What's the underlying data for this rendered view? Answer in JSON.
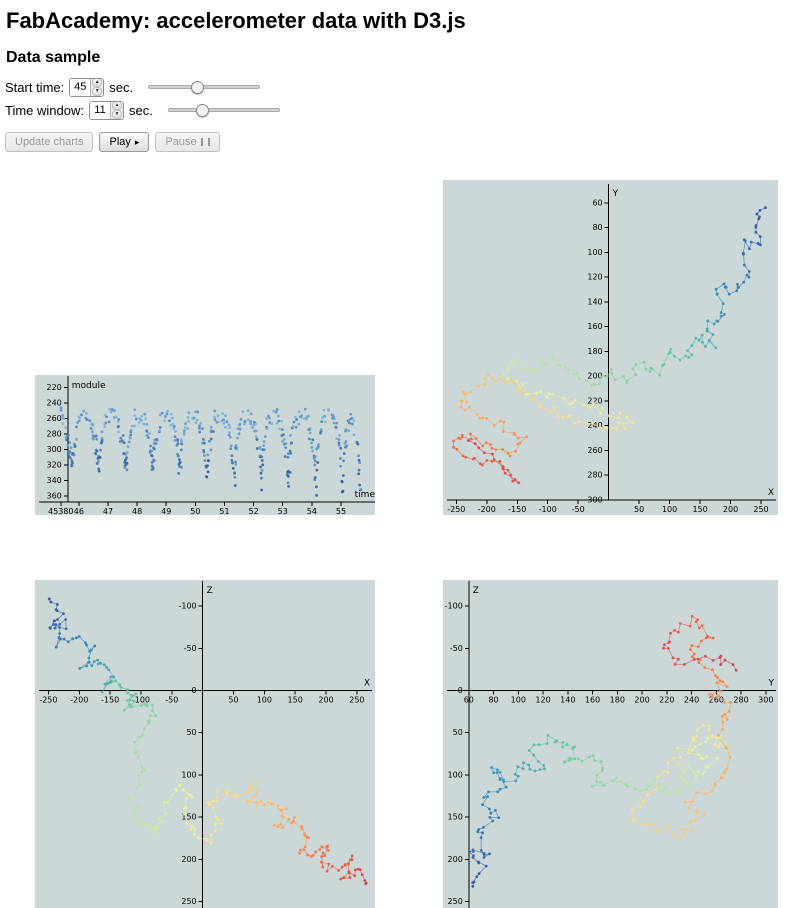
{
  "page": {
    "title": "FabAcademy: accelerometer data with D3.js",
    "subtitle": "Data sample"
  },
  "controls": {
    "start_time": {
      "label": "Start time:",
      "value": "45",
      "unit": "sec.",
      "slider_percent": 43
    },
    "time_window": {
      "label": "Time window:",
      "value": "11",
      "unit": "sec.",
      "slider_percent": 28
    },
    "buttons": {
      "update": "Update charts",
      "play": "Play",
      "play_icon": "▸",
      "pause": "Pause"
    }
  },
  "colors": {
    "chart_bg": "#cbd8d7",
    "module_light": "#7fb3dc",
    "module_dark": "#2a5f9e",
    "spectral": [
      "#3c53a4",
      "#3288bd",
      "#66c2a5",
      "#abdda4",
      "#e6f598",
      "#fee08b",
      "#fdae61",
      "#f46d43",
      "#d53e4f"
    ]
  },
  "chart_data": [
    {
      "id": "module",
      "type": "scatter",
      "x_label": "time",
      "y_label": "module",
      "x_domain": [
        44.7,
        56.1
      ],
      "y_domain": [
        210,
        368
      ],
      "x_axis_at": 368,
      "y_axis_at": 45.62,
      "x_ticks": [
        {
          "v": 45.38,
          "label": "45380"
        },
        46,
        47,
        48,
        49,
        50,
        51,
        52,
        53,
        54,
        55
      ],
      "y_ticks": [
        220,
        240,
        260,
        280,
        300,
        320,
        340,
        360
      ],
      "points": [
        [
          45.37,
          255
        ],
        [
          45.5,
          268
        ],
        [
          45.62,
          288
        ],
        [
          45.7,
          305
        ],
        [
          45.75,
          318
        ],
        [
          45.81,
          300
        ],
        [
          45.91,
          278
        ],
        [
          46.03,
          258
        ],
        [
          46.3,
          255
        ],
        [
          46.43,
          268
        ],
        [
          46.55,
          288
        ],
        [
          46.63,
          305
        ],
        [
          46.68,
          322
        ],
        [
          46.74,
          300
        ],
        [
          46.84,
          278
        ],
        [
          46.96,
          258
        ],
        [
          47.23,
          255
        ],
        [
          47.36,
          268
        ],
        [
          47.48,
          288
        ],
        [
          47.56,
          305
        ],
        [
          47.61,
          326
        ],
        [
          47.67,
          300
        ],
        [
          47.77,
          278
        ],
        [
          47.89,
          258
        ],
        [
          48.16,
          255
        ],
        [
          48.29,
          268
        ],
        [
          48.41,
          288
        ],
        [
          48.49,
          305
        ],
        [
          48.54,
          330
        ],
        [
          48.6,
          300
        ],
        [
          48.7,
          278
        ],
        [
          48.82,
          258
        ],
        [
          49.09,
          255
        ],
        [
          49.22,
          268
        ],
        [
          49.34,
          288
        ],
        [
          49.42,
          305
        ],
        [
          49.47,
          334
        ],
        [
          49.53,
          300
        ],
        [
          49.63,
          278
        ],
        [
          49.75,
          258
        ],
        [
          50.02,
          255
        ],
        [
          50.15,
          268
        ],
        [
          50.27,
          288
        ],
        [
          50.35,
          305
        ],
        [
          50.4,
          338
        ],
        [
          50.46,
          300
        ],
        [
          50.56,
          278
        ],
        [
          50.68,
          258
        ],
        [
          50.95,
          255
        ],
        [
          51.08,
          268
        ],
        [
          51.2,
          288
        ],
        [
          51.28,
          305
        ],
        [
          51.33,
          342
        ],
        [
          51.39,
          300
        ],
        [
          51.49,
          278
        ],
        [
          51.61,
          258
        ],
        [
          51.88,
          255
        ],
        [
          52.01,
          268
        ],
        [
          52.13,
          288
        ],
        [
          52.21,
          305
        ],
        [
          52.26,
          346
        ],
        [
          52.32,
          300
        ],
        [
          52.42,
          278
        ],
        [
          52.54,
          258
        ],
        [
          52.81,
          255
        ],
        [
          52.94,
          268
        ],
        [
          53.06,
          288
        ],
        [
          53.14,
          305
        ],
        [
          53.19,
          350
        ],
        [
          53.25,
          300
        ],
        [
          53.35,
          278
        ],
        [
          53.47,
          258
        ],
        [
          53.74,
          255
        ],
        [
          53.87,
          268
        ],
        [
          53.99,
          288
        ],
        [
          54.07,
          305
        ],
        [
          54.12,
          354
        ],
        [
          54.18,
          300
        ],
        [
          54.28,
          278
        ],
        [
          54.4,
          258
        ],
        [
          54.67,
          255
        ],
        [
          54.8,
          268
        ],
        [
          54.92,
          288
        ],
        [
          55.0,
          305
        ],
        [
          55.05,
          358
        ],
        [
          55.11,
          300
        ],
        [
          55.21,
          278
        ],
        [
          55.33,
          258
        ],
        [
          55.45,
          268
        ],
        [
          55.6,
          310
        ],
        [
          55.68,
          352
        ]
      ]
    },
    {
      "id": "xy",
      "type": "trajectory",
      "x_label": "X",
      "y_label": "Y",
      "x_domain": [
        -262,
        268
      ],
      "y_domain": [
        48,
        300
      ],
      "x_axis_at": 300,
      "y_axis_at": 0,
      "x_ticks": [
        -250,
        -200,
        -150,
        -100,
        -50,
        50,
        100,
        150,
        200,
        250
      ],
      "y_ticks": [
        60,
        80,
        100,
        120,
        140,
        160,
        180,
        200,
        220,
        240,
        260,
        280,
        300
      ],
      "points": [
        [
          255,
          62
        ],
        [
          238,
          78
        ],
        [
          248,
          96
        ],
        [
          220,
          92
        ],
        [
          230,
          118
        ],
        [
          205,
          132
        ],
        [
          178,
          128
        ],
        [
          190,
          150
        ],
        [
          162,
          158
        ],
        [
          172,
          176
        ],
        [
          145,
          168
        ],
        [
          128,
          188
        ],
        [
          100,
          180
        ],
        [
          82,
          198
        ],
        [
          55,
          190
        ],
        [
          30,
          205
        ],
        [
          2,
          198
        ],
        [
          -30,
          208
        ],
        [
          -65,
          196
        ],
        [
          -95,
          186
        ],
        [
          -125,
          198
        ],
        [
          -155,
          186
        ],
        [
          -170,
          202
        ],
        [
          -135,
          212
        ],
        [
          -95,
          215
        ],
        [
          -50,
          222
        ],
        [
          -5,
          228
        ],
        [
          35,
          236
        ],
        [
          5,
          244
        ],
        [
          -45,
          238
        ],
        [
          -90,
          228
        ],
        [
          -130,
          218
        ],
        [
          -165,
          206
        ],
        [
          -195,
          200
        ],
        [
          -225,
          212
        ],
        [
          -245,
          222
        ],
        [
          -215,
          232
        ],
        [
          -175,
          240
        ],
        [
          -140,
          252
        ],
        [
          -165,
          262
        ],
        [
          -205,
          256
        ],
        [
          -235,
          246
        ],
        [
          -252,
          258
        ],
        [
          -220,
          266
        ],
        [
          -180,
          272
        ],
        [
          -150,
          286
        ],
        [
          -185,
          266
        ],
        [
          -230,
          252
        ]
      ]
    },
    {
      "id": "xz",
      "type": "trajectory",
      "x_label": "X",
      "y_label": "Z",
      "x_domain": [
        -262,
        268
      ],
      "y_domain": [
        -125,
        260
      ],
      "x_axis_at": 0,
      "y_axis_at": 0,
      "x_ticks": [
        -250,
        -200,
        -150,
        -100,
        -50,
        50,
        100,
        150,
        200,
        250
      ],
      "y_ticks": [
        -100,
        -50,
        0,
        50,
        100,
        150,
        200,
        250
      ],
      "points": [
        [
          -245,
          -112
        ],
        [
          -228,
          -92
        ],
        [
          -252,
          -74
        ],
        [
          -222,
          -80
        ],
        [
          -238,
          -56
        ],
        [
          -205,
          -64
        ],
        [
          -180,
          -48
        ],
        [
          -196,
          -28
        ],
        [
          -168,
          -36
        ],
        [
          -148,
          -18
        ],
        [
          -160,
          -2
        ],
        [
          -132,
          -10
        ],
        [
          -112,
          4
        ],
        [
          -126,
          20
        ],
        [
          -98,
          12
        ],
        [
          -76,
          26
        ],
        [
          -92,
          44
        ],
        [
          -110,
          70
        ],
        [
          -95,
          98
        ],
        [
          -115,
          128
        ],
        [
          -100,
          155
        ],
        [
          -78,
          168
        ],
        [
          -62,
          142
        ],
        [
          -45,
          115
        ],
        [
          -20,
          122
        ],
        [
          -32,
          148
        ],
        [
          -8,
          170
        ],
        [
          12,
          182
        ],
        [
          28,
          158
        ],
        [
          8,
          132
        ],
        [
          35,
          118
        ],
        [
          62,
          126
        ],
        [
          88,
          112
        ],
        [
          75,
          136
        ],
        [
          108,
          130
        ],
        [
          132,
          142
        ],
        [
          118,
          160
        ],
        [
          148,
          155
        ],
        [
          170,
          170
        ],
        [
          155,
          188
        ],
        [
          182,
          196
        ],
        [
          205,
          182
        ],
        [
          190,
          205
        ],
        [
          218,
          215
        ],
        [
          242,
          200
        ],
        [
          228,
          222
        ],
        [
          252,
          212
        ],
        [
          265,
          228
        ]
      ]
    },
    {
      "id": "yz",
      "type": "trajectory",
      "x_label": "Y",
      "y_label": "Z",
      "x_domain": [
        44,
        305
      ],
      "y_domain": [
        -125,
        260
      ],
      "x_axis_at": 0,
      "y_axis_at": 60,
      "x_ticks": [
        60,
        80,
        100,
        120,
        140,
        160,
        180,
        200,
        220,
        240,
        260,
        280,
        300
      ],
      "y_ticks": [
        -100,
        -50,
        0,
        50,
        100,
        150,
        200,
        250
      ],
      "points": [
        [
          62,
          235
        ],
        [
          72,
          210
        ],
        [
          60,
          190
        ],
        [
          76,
          198
        ],
        [
          68,
          165
        ],
        [
          82,
          150
        ],
        [
          72,
          128
        ],
        [
          88,
          112
        ],
        [
          78,
          95
        ],
        [
          95,
          108
        ],
        [
          105,
          85
        ],
        [
          120,
          95
        ],
        [
          112,
          70
        ],
        [
          130,
          55
        ],
        [
          145,
          68
        ],
        [
          138,
          90
        ],
        [
          155,
          78
        ],
        [
          170,
          95
        ],
        [
          162,
          115
        ],
        [
          180,
          105
        ],
        [
          195,
          122
        ],
        [
          210,
          110
        ],
        [
          225,
          125
        ],
        [
          238,
          112
        ],
        [
          230,
          90
        ],
        [
          248,
          100
        ],
        [
          258,
          85
        ],
        [
          240,
          70
        ],
        [
          255,
          55
        ],
        [
          268,
          68
        ],
        [
          252,
          40
        ],
        [
          238,
          60
        ],
        [
          222,
          85
        ],
        [
          205,
          120
        ],
        [
          190,
          148
        ],
        [
          212,
          162
        ],
        [
          232,
          172
        ],
        [
          248,
          150
        ],
        [
          235,
          130
        ],
        [
          258,
          115
        ],
        [
          270,
          90
        ],
        [
          262,
          45
        ],
        [
          272,
          20
        ],
        [
          255,
          5
        ],
        [
          268,
          -12
        ],
        [
          250,
          -28
        ],
        [
          236,
          -48
        ],
        [
          256,
          -62
        ],
        [
          242,
          -88
        ],
        [
          226,
          -68
        ],
        [
          214,
          -50
        ],
        [
          234,
          -30
        ],
        [
          260,
          -42
        ],
        [
          276,
          -24
        ]
      ]
    }
  ]
}
